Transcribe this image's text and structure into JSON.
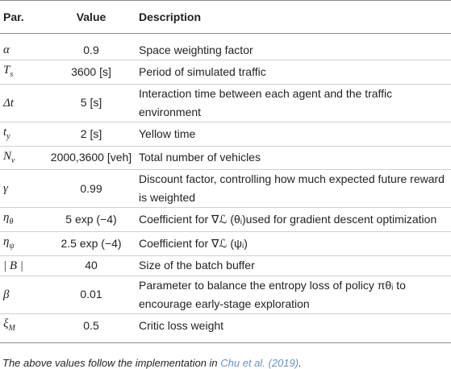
{
  "table": {
    "header": [
      "Par.",
      "Value",
      "Description"
    ],
    "rows": [
      [
        {
          "base": "α",
          "sub": ""
        },
        "0.9",
        "Space weighting factor"
      ],
      [
        {
          "base": "T",
          "sub": "s"
        },
        "3600 [s]",
        "Period of simulated traffic"
      ],
      [
        {
          "base": "Δt",
          "sub": ""
        },
        "5 [s]",
        "Interaction time between each agent and the traffic environment"
      ],
      [
        {
          "base": "t",
          "sub": "y"
        },
        "2 [s]",
        "Yellow time"
      ],
      [
        {
          "base": "N",
          "sub": "v"
        },
        "2000,3600 [veh]",
        "Total number of vehicles"
      ],
      [
        {
          "base": "γ",
          "sub": ""
        },
        "0.99",
        "Discount factor, controlling how much expected future reward is weighted"
      ],
      [
        {
          "base": "η",
          "sub": "θ"
        },
        "5 exp (−4)",
        "Coefficient for ∇ℒ (θᵢ)used for gradient descent optimization"
      ],
      [
        {
          "base": "η",
          "sub": "ψ"
        },
        "2.5 exp (−4)",
        "Coefficient for ∇ℒ (ψᵢ)"
      ],
      [
        {
          "base": "| B |",
          "sub": ""
        },
        "40",
        "Size of the batch buffer"
      ],
      [
        {
          "base": "β",
          "sub": ""
        },
        "0.01",
        "Parameter to balance the entropy loss of policy πθᵢ to encourage early-stage exploration"
      ],
      [
        {
          "base": "ξ",
          "sub": "M"
        },
        "0.5",
        "Critic loss weight"
      ]
    ]
  },
  "footnote": {
    "text": "The above values follow the implementation in ",
    "link": "Chu et al. (2019)",
    "end": "."
  }
}
